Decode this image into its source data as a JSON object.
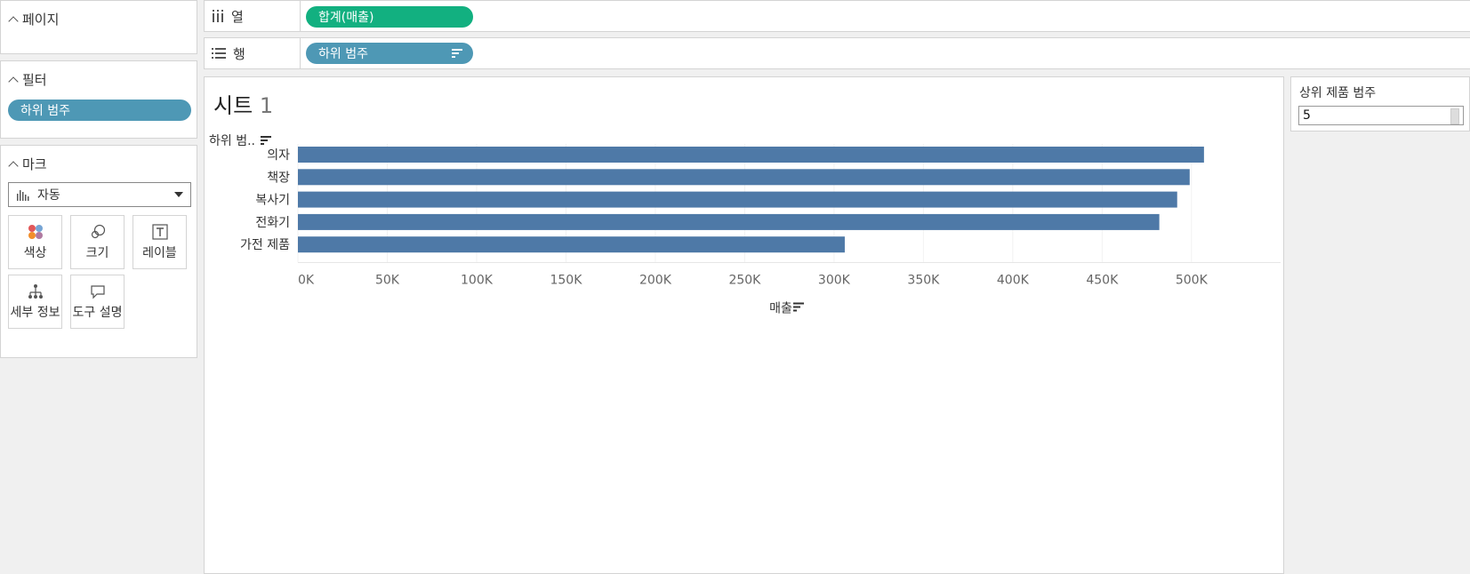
{
  "sidebar": {
    "pages": {
      "title": "페이지"
    },
    "filters": {
      "title": "필터",
      "pills": [
        "하위 범주"
      ]
    },
    "marks": {
      "title": "마크",
      "mark_type": "자동",
      "buttons": {
        "color": "색상",
        "size": "크기",
        "label": "레이블",
        "detail": "세부 정보",
        "tooltip": "도구 설명"
      }
    }
  },
  "shelves": {
    "columns": {
      "label": "열",
      "pill": "합계(매출)"
    },
    "rows": {
      "label": "행",
      "pill": "하위 범주"
    }
  },
  "sheet": {
    "title": "시트",
    "title_num": "1"
  },
  "parameter": {
    "title": "상위 제품 범주",
    "value": "5"
  },
  "colors": {
    "bar": "#4e79a7",
    "pill_blue": "#4e98b5",
    "pill_green": "#12b080"
  },
  "chart_data": {
    "type": "bar",
    "orientation": "horizontal",
    "categories": [
      "의자",
      "책장",
      "복사기",
      "전화기",
      "가전 제품"
    ],
    "values": [
      507000,
      499000,
      492000,
      482000,
      306000
    ],
    "xlabel": "매출",
    "ylabel": "하위 범..",
    "xlim": [
      0,
      520000
    ],
    "xticks": [
      "0K",
      "50K",
      "100K",
      "150K",
      "200K",
      "250K",
      "300K",
      "350K",
      "400K",
      "450K",
      "500K"
    ],
    "grid": true
  }
}
